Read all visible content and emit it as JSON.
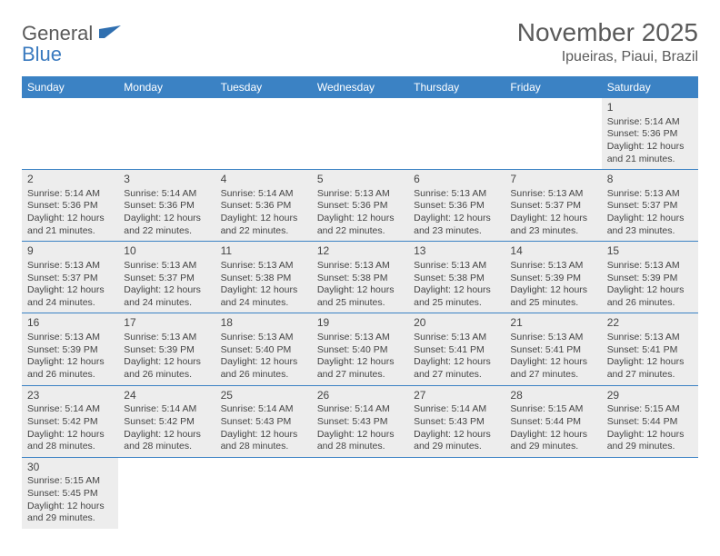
{
  "logo": {
    "text1": "General",
    "text2": "Blue"
  },
  "title": "November 2025",
  "location": "Ipueiras, Piaui, Brazil",
  "colors": {
    "header_bg": "#3b82c4",
    "header_text": "#ffffff",
    "cell_bg": "#ededed",
    "rule": "#3b82c4",
    "text": "#444444",
    "logo_gray": "#5a5a5a",
    "logo_blue": "#3a7abf"
  },
  "day_headers": [
    "Sunday",
    "Monday",
    "Tuesday",
    "Wednesday",
    "Thursday",
    "Friday",
    "Saturday"
  ],
  "weeks": [
    [
      null,
      null,
      null,
      null,
      null,
      null,
      {
        "n": "1",
        "sr": "5:14 AM",
        "ss": "5:36 PM",
        "dl": "12 hours and 21 minutes."
      }
    ],
    [
      {
        "n": "2",
        "sr": "5:14 AM",
        "ss": "5:36 PM",
        "dl": "12 hours and 21 minutes."
      },
      {
        "n": "3",
        "sr": "5:14 AM",
        "ss": "5:36 PM",
        "dl": "12 hours and 22 minutes."
      },
      {
        "n": "4",
        "sr": "5:14 AM",
        "ss": "5:36 PM",
        "dl": "12 hours and 22 minutes."
      },
      {
        "n": "5",
        "sr": "5:13 AM",
        "ss": "5:36 PM",
        "dl": "12 hours and 22 minutes."
      },
      {
        "n": "6",
        "sr": "5:13 AM",
        "ss": "5:36 PM",
        "dl": "12 hours and 23 minutes."
      },
      {
        "n": "7",
        "sr": "5:13 AM",
        "ss": "5:37 PM",
        "dl": "12 hours and 23 minutes."
      },
      {
        "n": "8",
        "sr": "5:13 AM",
        "ss": "5:37 PM",
        "dl": "12 hours and 23 minutes."
      }
    ],
    [
      {
        "n": "9",
        "sr": "5:13 AM",
        "ss": "5:37 PM",
        "dl": "12 hours and 24 minutes."
      },
      {
        "n": "10",
        "sr": "5:13 AM",
        "ss": "5:37 PM",
        "dl": "12 hours and 24 minutes."
      },
      {
        "n": "11",
        "sr": "5:13 AM",
        "ss": "5:38 PM",
        "dl": "12 hours and 24 minutes."
      },
      {
        "n": "12",
        "sr": "5:13 AM",
        "ss": "5:38 PM",
        "dl": "12 hours and 25 minutes."
      },
      {
        "n": "13",
        "sr": "5:13 AM",
        "ss": "5:38 PM",
        "dl": "12 hours and 25 minutes."
      },
      {
        "n": "14",
        "sr": "5:13 AM",
        "ss": "5:39 PM",
        "dl": "12 hours and 25 minutes."
      },
      {
        "n": "15",
        "sr": "5:13 AM",
        "ss": "5:39 PM",
        "dl": "12 hours and 26 minutes."
      }
    ],
    [
      {
        "n": "16",
        "sr": "5:13 AM",
        "ss": "5:39 PM",
        "dl": "12 hours and 26 minutes."
      },
      {
        "n": "17",
        "sr": "5:13 AM",
        "ss": "5:39 PM",
        "dl": "12 hours and 26 minutes."
      },
      {
        "n": "18",
        "sr": "5:13 AM",
        "ss": "5:40 PM",
        "dl": "12 hours and 26 minutes."
      },
      {
        "n": "19",
        "sr": "5:13 AM",
        "ss": "5:40 PM",
        "dl": "12 hours and 27 minutes."
      },
      {
        "n": "20",
        "sr": "5:13 AM",
        "ss": "5:41 PM",
        "dl": "12 hours and 27 minutes."
      },
      {
        "n": "21",
        "sr": "5:13 AM",
        "ss": "5:41 PM",
        "dl": "12 hours and 27 minutes."
      },
      {
        "n": "22",
        "sr": "5:13 AM",
        "ss": "5:41 PM",
        "dl": "12 hours and 27 minutes."
      }
    ],
    [
      {
        "n": "23",
        "sr": "5:14 AM",
        "ss": "5:42 PM",
        "dl": "12 hours and 28 minutes."
      },
      {
        "n": "24",
        "sr": "5:14 AM",
        "ss": "5:42 PM",
        "dl": "12 hours and 28 minutes."
      },
      {
        "n": "25",
        "sr": "5:14 AM",
        "ss": "5:43 PM",
        "dl": "12 hours and 28 minutes."
      },
      {
        "n": "26",
        "sr": "5:14 AM",
        "ss": "5:43 PM",
        "dl": "12 hours and 28 minutes."
      },
      {
        "n": "27",
        "sr": "5:14 AM",
        "ss": "5:43 PM",
        "dl": "12 hours and 29 minutes."
      },
      {
        "n": "28",
        "sr": "5:15 AM",
        "ss": "5:44 PM",
        "dl": "12 hours and 29 minutes."
      },
      {
        "n": "29",
        "sr": "5:15 AM",
        "ss": "5:44 PM",
        "dl": "12 hours and 29 minutes."
      }
    ],
    [
      {
        "n": "30",
        "sr": "5:15 AM",
        "ss": "5:45 PM",
        "dl": "12 hours and 29 minutes."
      },
      null,
      null,
      null,
      null,
      null,
      null
    ]
  ],
  "labels": {
    "sunrise": "Sunrise: ",
    "sunset": "Sunset: ",
    "daylight": "Daylight: "
  }
}
